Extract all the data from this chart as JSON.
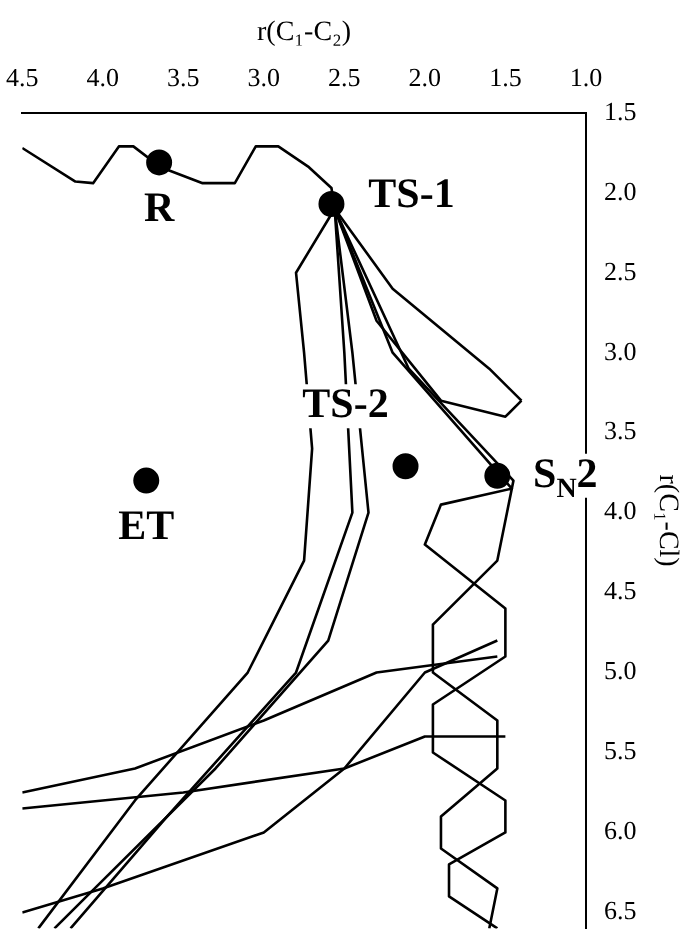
{
  "chart_data": {
    "type": "line",
    "xlabel": "r(C₁-C₂)",
    "ylabel": "r(C₁-Cl)",
    "xlim": [
      4.5,
      1.0
    ],
    "ylim": [
      6.6,
      1.5
    ],
    "xticks": [
      4.5,
      {
        "value": 4,
        "label": "4.0"
      },
      3.5,
      {
        "value": 3,
        "label": "3.0"
      },
      2.5,
      {
        "value": 2,
        "label": "2.0"
      },
      1.5,
      {
        "value": 1,
        "label": "1.0"
      }
    ],
    "yticks": [
      1.5,
      {
        "value": 2,
        "label": "2.0"
      },
      2.5,
      {
        "value": 3,
        "label": "3.0"
      },
      3.5,
      {
        "value": 4,
        "label": "4.0"
      },
      4.5,
      {
        "value": 5,
        "label": "5.0"
      },
      5.5,
      {
        "value": 6,
        "label": "6.0"
      },
      6.5
    ],
    "grid": false,
    "legend": false,
    "marker": "none",
    "line_style": "solid",
    "series": [
      {
        "color": "#000000",
        "x": [
          4.5,
          4.17,
          4.06,
          3.9,
          3.81,
          3.64,
          3.38,
          3.18,
          3.05,
          2.91,
          2.72,
          2.58,
          2.56
        ],
        "values": [
          1.72,
          1.93,
          1.94,
          1.71,
          1.71,
          1.84,
          1.94,
          1.94,
          1.71,
          1.71,
          1.84,
          1.97,
          2.1
        ]
      },
      {
        "color": "#000000",
        "x": [
          2.56,
          2.2,
          1.46,
          1.9,
          2.0,
          1.5,
          1.5,
          1.95,
          1.95,
          1.5,
          1.5,
          1.85,
          1.85,
          1.55
        ],
        "values": [
          2.1,
          3.0,
          3.85,
          3.95,
          4.2,
          4.6,
          4.9,
          5.2,
          5.5,
          5.8,
          6.0,
          6.2,
          6.4,
          6.6
        ]
      },
      {
        "color": "#000000",
        "x": [
          2.56,
          2.1,
          1.45,
          1.55,
          1.95,
          1.95,
          1.55,
          1.55,
          1.9,
          1.9,
          1.55,
          1.6
        ],
        "values": [
          2.1,
          3.1,
          3.8,
          4.3,
          4.7,
          5.0,
          5.3,
          5.6,
          5.9,
          6.1,
          6.35,
          6.6
        ]
      },
      {
        "color": "#000000",
        "x": [
          2.56,
          2.45,
          2.35,
          2.6,
          3.3,
          4.1,
          4.3
        ],
        "values": [
          2.1,
          3.0,
          4.0,
          4.8,
          5.6,
          6.4,
          6.6
        ]
      },
      {
        "color": "#000000",
        "x": [
          2.56,
          2.5,
          2.45,
          2.8,
          3.6,
          4.2
        ],
        "values": [
          2.1,
          3.0,
          4.0,
          5.0,
          5.9,
          6.6
        ]
      },
      {
        "color": "#000000",
        "x": [
          1.55,
          2.3,
          3.0,
          3.8,
          4.5
        ],
        "values": [
          4.9,
          5.0,
          5.3,
          5.6,
          5.75
        ]
      },
      {
        "color": "#000000",
        "x": [
          1.5,
          2.0,
          2.5,
          3.5,
          4.5
        ],
        "values": [
          5.4,
          5.4,
          5.6,
          5.75,
          5.85
        ]
      },
      {
        "color": "#000000",
        "x": [
          1.55,
          2.0,
          2.5,
          3.0,
          4.0,
          4.5
        ],
        "values": [
          4.8,
          5.0,
          5.6,
          6.0,
          6.35,
          6.5
        ]
      },
      {
        "color": "#000000",
        "x": [
          2.56,
          2.2,
          1.6,
          1.4
        ],
        "values": [
          2.1,
          2.6,
          3.1,
          3.3
        ]
      },
      {
        "color": "#000000",
        "x": [
          1.4,
          1.5,
          1.9,
          2.3,
          2.56
        ],
        "values": [
          3.3,
          3.4,
          3.3,
          2.8,
          2.1
        ]
      },
      {
        "color": "#000000",
        "x": [
          2.56,
          2.8,
          2.75,
          2.7,
          2.75,
          3.1,
          3.8,
          4.4
        ],
        "values": [
          2.1,
          2.5,
          3.0,
          3.6,
          4.3,
          5.0,
          5.8,
          6.6
        ]
      },
      {
        "type": "scatter",
        "marker": "circle",
        "color": "#000000",
        "x": [
          3.65,
          2.58,
          2.12,
          1.55,
          3.73
        ],
        "values": [
          1.81,
          2.07,
          3.71,
          3.77,
          3.8
        ]
      }
    ],
    "annotations": [
      "R",
      "TS-1",
      "TS-2",
      "S$_{N}$2",
      "ET"
    ]
  }
}
